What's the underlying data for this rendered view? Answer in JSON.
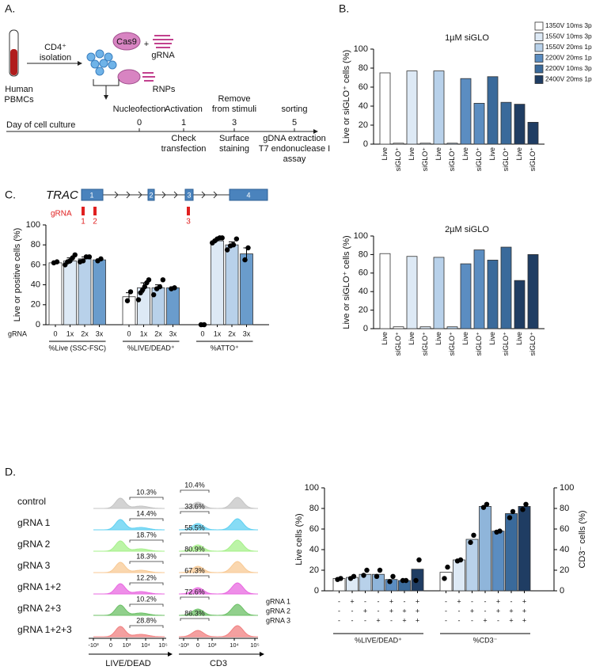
{
  "panel_labels": [
    "A.",
    "B.",
    "C.",
    "D."
  ],
  "panel_a": {
    "isolation": [
      "CD4⁺",
      "isolation"
    ],
    "source": [
      "Human",
      "PBMCs"
    ],
    "cas9": "Cas9",
    "plus": "+",
    "grna": "gRNA",
    "rnps": "RNPs",
    "day_axis": "Day of cell culture",
    "steps": [
      {
        "above": [
          "Nucleofection"
        ],
        "day": "0"
      },
      {
        "above": [
          "Activation"
        ],
        "day": "1",
        "below": [
          "Check",
          "transfection"
        ]
      },
      {
        "above": [
          "Remove",
          "from stimuli"
        ],
        "day": "3",
        "below": [
          "Surface",
          "staining"
        ]
      },
      {
        "above": [
          "sorting"
        ],
        "day": "5",
        "below": [
          "gDNA extraction",
          "T7 endonuclease I",
          "assay"
        ]
      }
    ]
  },
  "gene": {
    "name": "TRAC",
    "exons": [
      "1",
      "2",
      "3",
      "4"
    ],
    "grna_label": "gRNA",
    "grnas": [
      "1",
      "2",
      "3"
    ]
  },
  "flow": {
    "rows": [
      {
        "label": "control",
        "live_dead": "10.3%",
        "cd3": "10.4%",
        "color": "#c4c4c4"
      },
      {
        "label": "gRNA 1",
        "live_dead": "14.4%",
        "cd3": "33.6%",
        "color": "#5fd0f2"
      },
      {
        "label": "gRNA 2",
        "live_dead": "18.7%",
        "cd3": "55.5%",
        "color": "#a6f08a"
      },
      {
        "label": "gRNA 3",
        "live_dead": "18.3%",
        "cd3": "80.9%",
        "color": "#f8c994"
      },
      {
        "label": "gRNA 1+2",
        "live_dead": "12.2%",
        "cd3": "67.3%",
        "color": "#e868e0"
      },
      {
        "label": "gRNA 2+3",
        "live_dead": "10.2%",
        "cd3": "72.6%",
        "color": "#6cc066"
      },
      {
        "label": "gRNA 1+2+3",
        "live_dead": "28.8%",
        "cd3": "86.3%",
        "color": "#f08080"
      }
    ],
    "live_dead_axis": {
      "label": "LIVE/DEAD",
      "ticks": [
        "-10³",
        "0",
        "10³",
        "10⁴",
        "10⁵"
      ]
    },
    "cd3_axis": {
      "label": "CD3",
      "ticks": [
        "-10³",
        "0",
        "10³",
        "10⁴",
        "10⁵"
      ]
    }
  },
  "chart_data": [
    {
      "type": "bar",
      "title": "1µM siGLO",
      "y_label": "Live or siGLO⁺ cells (%)",
      "categories": [
        "Live",
        "siGLO⁺"
      ],
      "series": [
        {
          "name": "1350V 10ms 3p",
          "color": "#ffffff",
          "values": [
            75,
            1
          ]
        },
        {
          "name": "1550V 10ms 3p",
          "color": "#dde9f5",
          "values": [
            77,
            1
          ]
        },
        {
          "name": "1550V 20ms 1p",
          "color": "#b8d1ea",
          "values": [
            77,
            1
          ]
        },
        {
          "name": "2200V 20ms 1p",
          "color": "#5b8dc1",
          "values": [
            69,
            43
          ]
        },
        {
          "name": "2200V 10ms 3p",
          "color": "#3a6a9b",
          "values": [
            71,
            44
          ]
        },
        {
          "name": "2400V 20ms 1p",
          "color": "#1f3d63",
          "values": [
            42,
            23
          ]
        }
      ],
      "ylim": [
        0,
        100
      ],
      "yticks": [
        0,
        20,
        40,
        60,
        80,
        100
      ],
      "legend": "top-right"
    },
    {
      "type": "bar",
      "title": "2µM siGLO",
      "y_label": "Live or siGLO⁺ cells (%)",
      "categories": [
        "Live",
        "siGLO⁺"
      ],
      "series": [
        {
          "color": "#ffffff",
          "values": [
            81,
            2
          ]
        },
        {
          "color": "#dde9f5",
          "values": [
            78,
            2
          ]
        },
        {
          "color": "#b8d1ea",
          "values": [
            77,
            2
          ]
        },
        {
          "color": "#5b8dc1",
          "values": [
            70,
            85
          ]
        },
        {
          "color": "#3a6a9b",
          "values": [
            74,
            88
          ]
        },
        {
          "color": "#1f3d63",
          "values": [
            52,
            80
          ]
        }
      ],
      "ylim": [
        0,
        100
      ],
      "yticks": [
        0,
        20,
        40,
        60,
        80,
        100
      ]
    },
    {
      "type": "bar",
      "y_label": "Live or positive cells (%)",
      "x_row_label": "gRNA",
      "categories": [
        "%Live (SSC-FSC)",
        "%LIVE/DEAD⁺",
        "%ATTO⁺"
      ],
      "series": [
        {
          "name": "0",
          "color": "#ffffff",
          "values": [
            62,
            28,
            0
          ],
          "errors": [
            1,
            4,
            0
          ],
          "points": [
            [
              62,
              63
            ],
            [
              24,
              33
            ],
            [
              0,
              0
            ]
          ]
        },
        {
          "name": "1x",
          "color": "#dde9f5",
          "values": [
            64,
            37,
            84
          ],
          "errors": [
            3,
            5,
            1
          ],
          "points": [
            [
              60,
              63,
              64,
              67,
              70
            ],
            [
              25,
              32,
              35,
              38,
              42,
              45
            ],
            [
              82,
              84,
              86,
              87,
              87
            ]
          ]
        },
        {
          "name": "2x",
          "color": "#b8d1ea",
          "values": [
            66,
            37,
            80
          ],
          "errors": [
            2,
            3,
            3
          ],
          "points": [
            [
              63,
              64,
              68,
              68
            ],
            [
              30,
              36,
              38,
              45
            ],
            [
              75,
              79,
              80,
              86
            ]
          ]
        },
        {
          "name": "3x",
          "color": "#6a9ccc",
          "values": [
            65,
            37,
            71
          ],
          "errors": [
            1,
            1,
            6
          ],
          "points": [
            [
              64,
              66
            ],
            [
              36,
              37
            ],
            [
              65,
              77
            ]
          ]
        }
      ],
      "ylim": [
        0,
        100
      ],
      "yticks": [
        0,
        20,
        40,
        60,
        80,
        100
      ]
    },
    {
      "type": "bar",
      "y_label": "Live cells (%)",
      "y2_label": "CD3⁻ cells (%)",
      "categories": [
        "%LIVE/DEAD⁺",
        "%CD3⁻"
      ],
      "design_labels": [
        "gRNA 1",
        "gRNA 2",
        "gRNA 3"
      ],
      "series": [
        {
          "color": "#ffffff",
          "values": [
            12,
            18
          ],
          "points": [
            [
              11,
              12
            ],
            [
              12,
              23
            ]
          ],
          "design": [
            "-",
            "-",
            "-"
          ]
        },
        {
          "color": "#dde9f5",
          "values": [
            13,
            30
          ],
          "points": [
            [
              12,
              14
            ],
            [
              29,
              30
            ]
          ],
          "design": [
            "+",
            "-",
            "-"
          ]
        },
        {
          "color": "#b8d1ea",
          "values": [
            16,
            50
          ],
          "points": [
            [
              15,
              20
            ],
            [
              47,
              54
            ]
          ],
          "design": [
            "-",
            "+",
            "-"
          ]
        },
        {
          "color": "#8fb5da",
          "values": [
            16,
            82
          ],
          "points": [
            [
              14,
              20
            ],
            [
              81,
              84
            ]
          ],
          "design": [
            "-",
            "-",
            "+"
          ]
        },
        {
          "color": "#5b8dc1",
          "values": [
            11,
            58
          ],
          "points": [
            [
              9,
              14
            ],
            [
              57,
              58
            ]
          ],
          "design": [
            "+",
            "+",
            "-"
          ]
        },
        {
          "color": "#3a6a9b",
          "values": [
            10,
            75
          ],
          "points": [
            [
              10,
              10
            ],
            [
              71,
              77
            ]
          ],
          "design": [
            "-",
            "+",
            "+"
          ]
        },
        {
          "color": "#1f3d63",
          "values": [
            21,
            82
          ],
          "points": [
            [
              10,
              30
            ],
            [
              79,
              84
            ]
          ],
          "design": [
            "+",
            "+",
            "+"
          ]
        }
      ],
      "ylim": [
        0,
        100
      ],
      "yticks": [
        0,
        20,
        40,
        60,
        80,
        100
      ],
      "y2lim": [
        0,
        100
      ],
      "y2ticks": [
        0,
        20,
        40,
        60,
        80,
        100
      ]
    }
  ]
}
